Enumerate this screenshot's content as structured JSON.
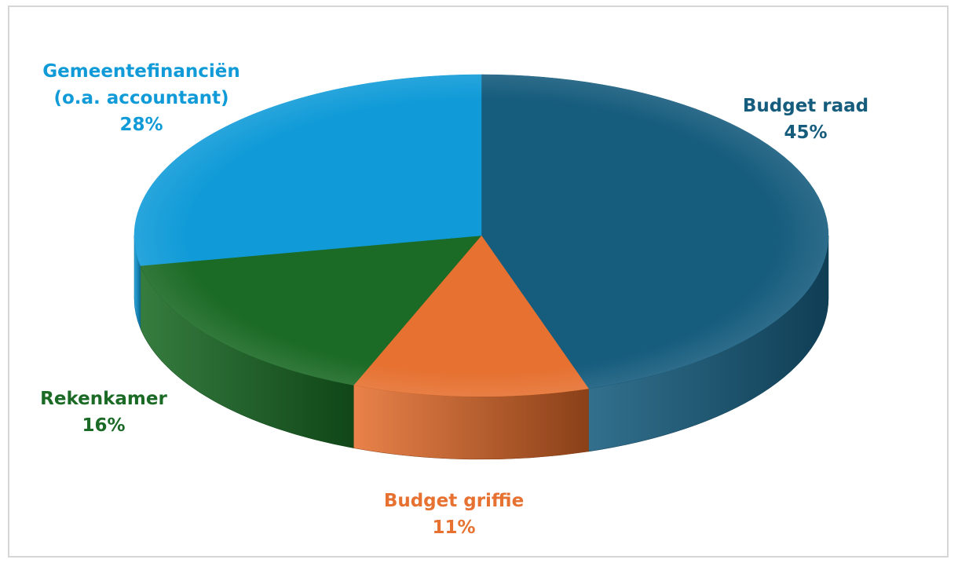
{
  "chart_data": {
    "type": "pie",
    "style": "3d",
    "categories": [
      "Budget raad",
      "Budget griffie",
      "Rekenkamer",
      "Gemeentefinanciën (o.a. accountant)"
    ],
    "values": [
      45,
      11,
      16,
      28
    ],
    "value_suffix": "%",
    "labels": [
      {
        "lines": [
          "Budget raad"
        ],
        "percent": "45%"
      },
      {
        "lines": [
          "Budget griffie"
        ],
        "percent": "11%"
      },
      {
        "lines": [
          "Rekenkamer"
        ],
        "percent": "16%"
      },
      {
        "lines": [
          "Gemeentefinanciën",
          "(o.a. accountant)"
        ],
        "percent": "28%"
      }
    ],
    "colors": [
      "#165c7d",
      "#e67131",
      "#1b6a25",
      "#109bd8"
    ],
    "side_colors": [
      "#0f3e55",
      "#8a4018",
      "#104618",
      "#0a6a94"
    ],
    "label_colors": [
      "#165c7d",
      "#e67131",
      "#1b6a25",
      "#109bd8"
    ],
    "title": "",
    "legend": "none"
  }
}
